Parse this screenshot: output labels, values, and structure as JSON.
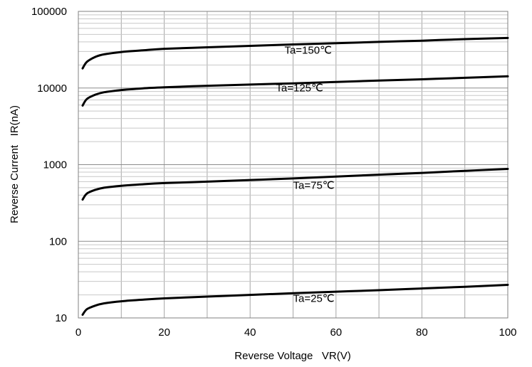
{
  "chart_data": {
    "type": "line",
    "xlabel": "Reverse Voltage   VR(V)",
    "ylabel": "Reverse Current   IR(nA)",
    "xlim": [
      0,
      100
    ],
    "ylim": [
      10,
      100000
    ],
    "yscale": "log",
    "grid": true,
    "x_ticks": [
      "0",
      "20",
      "40",
      "60",
      "80",
      "100"
    ],
    "y_ticks": [
      "10",
      "100",
      "1000",
      "10000",
      "100000"
    ],
    "series": [
      {
        "name": "Ta=150℃",
        "x": [
          1,
          2,
          4,
          6,
          10,
          15,
          20,
          30,
          40,
          50,
          60,
          70,
          80,
          90,
          100
        ],
        "y": [
          18000,
          22000,
          25500,
          27500,
          29500,
          31000,
          32500,
          34000,
          35500,
          37000,
          38500,
          40000,
          41500,
          43500,
          45000
        ]
      },
      {
        "name": "Ta=125℃",
        "x": [
          1,
          2,
          4,
          6,
          10,
          15,
          20,
          30,
          40,
          50,
          60,
          70,
          80,
          90,
          100
        ],
        "y": [
          5900,
          7200,
          8200,
          8800,
          9400,
          9900,
          10200,
          10700,
          11100,
          11500,
          12000,
          12500,
          13000,
          13600,
          14200
        ]
      },
      {
        "name": "Ta=75℃",
        "x": [
          1,
          2,
          4,
          6,
          10,
          15,
          20,
          30,
          40,
          50,
          60,
          70,
          80,
          90,
          100
        ],
        "y": [
          350,
          420,
          470,
          500,
          530,
          555,
          575,
          600,
          630,
          660,
          700,
          740,
          780,
          830,
          880
        ]
      },
      {
        "name": "Ta=25℃",
        "x": [
          1,
          2,
          4,
          6,
          10,
          15,
          20,
          30,
          40,
          50,
          60,
          70,
          80,
          90,
          100
        ],
        "y": [
          11,
          13,
          14.5,
          15.5,
          16.5,
          17.3,
          18,
          19,
          20,
          21,
          22,
          23,
          24.2,
          25.5,
          27
        ]
      }
    ],
    "labels_at": [
      {
        "text": "Ta=150℃",
        "x": 48,
        "y": 28000
      },
      {
        "text": "Ta=125℃",
        "x": 46,
        "y": 9000
      },
      {
        "text": "Ta=75℃",
        "x": 50,
        "y": 485
      },
      {
        "text": "Ta=25℃",
        "x": 50,
        "y": 16.2
      }
    ]
  }
}
